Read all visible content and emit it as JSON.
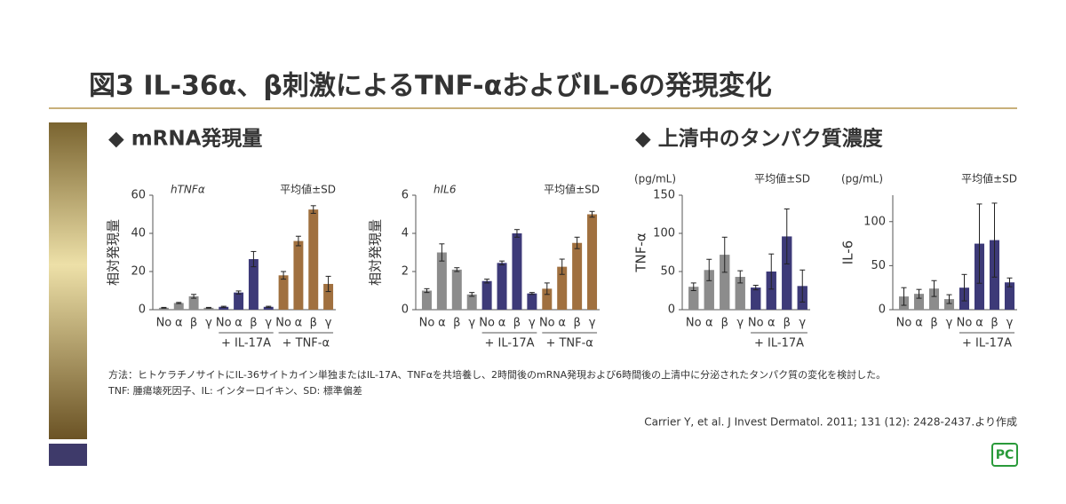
{
  "title": "図3 IL-36α、β刺激によるTNF-αおよびIL-6の発現変化",
  "sections": [
    "◆ mRNA発現量",
    "◆ 上清中のタンパク質濃度"
  ],
  "notes": [
    "方法：ヒトケラチノサイトにIL-36サイトカイン単独またはIL-17A、TNFαを共培養し、2時間後のmRNA発現および6時間後の上清中に分泌されたタンパク質の変化を検討した。",
    "TNF: 腫瘍壊死因子、IL: インターロイキン、SD: 標準偏差"
  ],
  "citation": "Carrier Y, et al. J Invest Dermatol. 2011; 131 (12): 2428-2437.より作成",
  "logo": "PC",
  "chart_data": [
    {
      "type": "bar",
      "subtitle": "hTNFα",
      "ylabel": "相対発現量",
      "annotation": "平均値±SD",
      "categories": [
        "No",
        "α",
        "β",
        "γ",
        "No",
        "α",
        "β",
        "γ",
        "No",
        "α",
        "β",
        "γ"
      ],
      "values": [
        1,
        3.5,
        7,
        1,
        1.5,
        9,
        26.5,
        1.5,
        18,
        36,
        52.5,
        13.5
      ],
      "errors": [
        0.2,
        0.3,
        1,
        0.2,
        0.3,
        0.8,
        4,
        0.3,
        2,
        2.5,
        2,
        4
      ],
      "colors": [
        "#8c8c8c",
        "#8c8c8c",
        "#8c8c8c",
        "#8c8c8c",
        "#3d3a78",
        "#3d3a78",
        "#3d3a78",
        "#3d3a78",
        "#a0703f",
        "#a0703f",
        "#a0703f",
        "#a0703f"
      ],
      "groups": [
        "+ IL-17A",
        "+ TNF-α"
      ],
      "ylim": [
        0,
        60
      ],
      "yticks": [
        0,
        20,
        40,
        60
      ]
    },
    {
      "type": "bar",
      "subtitle": "hIL6",
      "ylabel": "相対発現量",
      "annotation": "平均値±SD",
      "categories": [
        "No",
        "α",
        "β",
        "γ",
        "No",
        "α",
        "β",
        "γ",
        "No",
        "α",
        "β",
        "γ"
      ],
      "values": [
        1.0,
        3.0,
        2.1,
        0.8,
        1.5,
        2.45,
        4.0,
        0.85,
        1.1,
        2.25,
        3.5,
        5.0
      ],
      "errors": [
        0.1,
        0.45,
        0.1,
        0.1,
        0.1,
        0.1,
        0.2,
        0.05,
        0.3,
        0.4,
        0.3,
        0.15
      ],
      "colors": [
        "#8c8c8c",
        "#8c8c8c",
        "#8c8c8c",
        "#8c8c8c",
        "#3d3a78",
        "#3d3a78",
        "#3d3a78",
        "#3d3a78",
        "#a0703f",
        "#a0703f",
        "#a0703f",
        "#a0703f"
      ],
      "groups": [
        "+ IL-17A",
        "+ TNF-α"
      ],
      "ylim": [
        0,
        6
      ],
      "yticks": [
        0,
        2,
        4,
        6
      ]
    },
    {
      "type": "bar",
      "units": "(pg/mL)",
      "ylabel": "TNF-α",
      "annotation": "平均値±SD",
      "categories": [
        "No",
        "α",
        "β",
        "γ",
        "No",
        "α",
        "β",
        "γ"
      ],
      "values": [
        30,
        52,
        72,
        43,
        29,
        50,
        96,
        31
      ],
      "errors": [
        5,
        14,
        23,
        8,
        3,
        23,
        36,
        21
      ],
      "colors": [
        "#8c8c8c",
        "#8c8c8c",
        "#8c8c8c",
        "#8c8c8c",
        "#3d3a78",
        "#3d3a78",
        "#3d3a78",
        "#3d3a78"
      ],
      "groups": [
        "+ IL-17A"
      ],
      "ylim": [
        0,
        150
      ],
      "yticks": [
        0,
        50,
        100,
        150
      ]
    },
    {
      "type": "bar",
      "units": "(pg/mL)",
      "ylabel": "IL-6",
      "annotation": "平均値±SD",
      "categories": [
        "No",
        "α",
        "β",
        "γ",
        "No",
        "α",
        "β",
        "γ"
      ],
      "values": [
        15,
        18,
        24,
        12,
        25,
        75,
        79,
        31
      ],
      "errors": [
        10,
        5,
        9,
        5,
        15,
        45,
        42,
        5
      ],
      "colors": [
        "#8c8c8c",
        "#8c8c8c",
        "#8c8c8c",
        "#8c8c8c",
        "#3d3a78",
        "#3d3a78",
        "#3d3a78",
        "#3d3a78"
      ],
      "groups": [
        "+ IL-17A"
      ],
      "ylim": [
        0,
        130
      ],
      "yticks": [
        0,
        50,
        100
      ]
    }
  ]
}
